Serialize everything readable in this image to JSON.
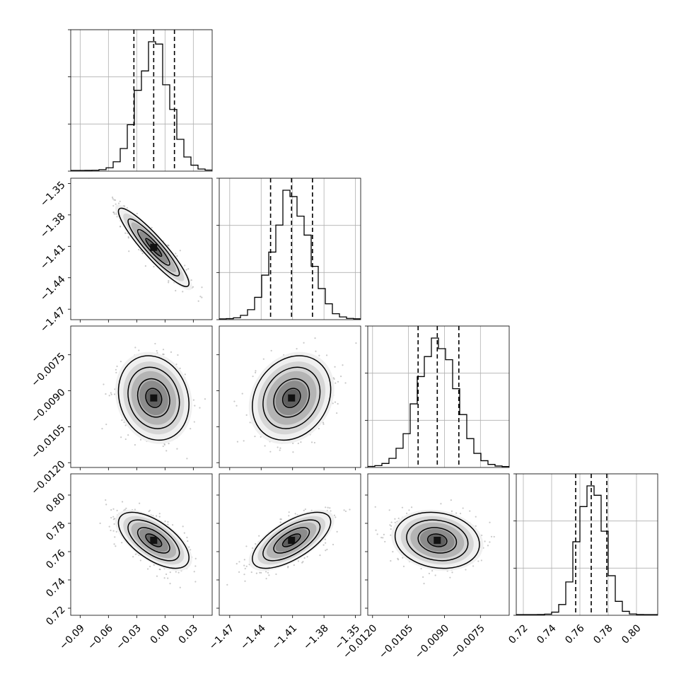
{
  "chart_data": {
    "type": "corner",
    "description": "Corner plot of posterior samples for 4 parameters",
    "parameters": [
      {
        "range": [
          -0.1,
          0.05
        ],
        "ticks": [
          -0.09,
          -0.06,
          -0.03,
          0.0,
          0.03
        ],
        "tick_labels": [
          "−0.09",
          "−0.06",
          "−0.03",
          "0.00",
          "0.03"
        ],
        "mean": -0.012,
        "sigma": 0.017,
        "quantiles": [
          -0.033,
          -0.012,
          0.01
        ]
      },
      {
        "range": [
          -1.48,
          -1.345
        ],
        "ticks": [
          -1.47,
          -1.44,
          -1.41,
          -1.38,
          -1.35
        ],
        "tick_labels": [
          "−1.47",
          "−1.44",
          "−1.41",
          "−1.38",
          "−1.35"
        ],
        "mean": -1.411,
        "sigma": 0.017,
        "quantiles": [
          -1.431,
          -1.411,
          -1.391
        ]
      },
      {
        "range": [
          -0.0122,
          -0.0063
        ],
        "ticks": [
          -0.012,
          -0.0105,
          -0.009,
          -0.0075
        ],
        "tick_labels": [
          "−0.0120",
          "−0.0105",
          "−0.0090",
          "−0.0075"
        ],
        "mean": -0.0093,
        "sigma": 0.0008,
        "quantiles": [
          -0.0101,
          -0.0093,
          -0.0084
        ]
      },
      {
        "range": [
          0.715,
          0.815
        ],
        "ticks": [
          0.72,
          0.74,
          0.76,
          0.78,
          0.8
        ],
        "tick_labels": [
          "0.72",
          "0.74",
          "0.76",
          "0.78",
          "0.80"
        ],
        "mean": 0.768,
        "sigma": 0.009,
        "quantiles": [
          0.757,
          0.768,
          0.779
        ]
      }
    ],
    "correlations": [
      {
        "pair": [
          0,
          1
        ],
        "rho": -0.92
      },
      {
        "pair": [
          0,
          2
        ],
        "rho": -0.15
      },
      {
        "pair": [
          1,
          2
        ],
        "rho": 0.2
      },
      {
        "pair": [
          0,
          3
        ],
        "rho": -0.62
      },
      {
        "pair": [
          1,
          3
        ],
        "rho": 0.66
      },
      {
        "pair": [
          2,
          3
        ],
        "rho": -0.15
      }
    ],
    "histogram_bins": 20,
    "contour_levels": [
      0.5,
      1.0,
      1.5,
      2.0
    ],
    "grid": true,
    "colors": {
      "line": "#000000",
      "grid": "#b0b0b0",
      "points": "#888888",
      "background": "#ffffff"
    }
  }
}
